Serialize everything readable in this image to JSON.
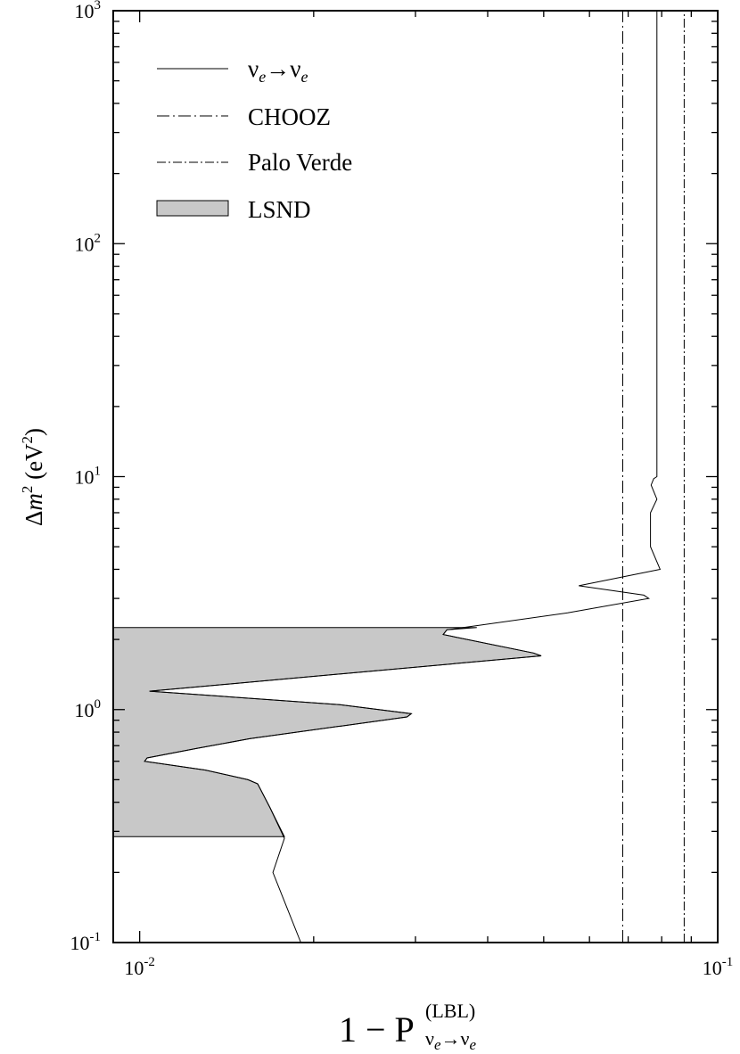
{
  "chart_data": {
    "type": "line",
    "x_scale": "log",
    "y_scale": "log",
    "xlim": [
      0.009,
      0.1
    ],
    "ylim": [
      0.1,
      1000
    ],
    "grid": false,
    "legend_position": "top-left",
    "xlabel": {
      "main": "1 − P",
      "sup": "(LBL)",
      "sub_a": "ν",
      "sub_e1": "e",
      "sub_arrow": "→ν",
      "sub_e2": "e"
    },
    "ylabel": {
      "delta": "Δ",
      "m": "m",
      "sq": "2",
      "unit_open": " (eV",
      "unit_sq": "2",
      "unit_close": ")"
    },
    "x_ticks": [
      {
        "value": 0.01,
        "base": "10",
        "exp": "-2"
      },
      {
        "value": 0.1,
        "base": "10",
        "exp": "-1"
      }
    ],
    "y_ticks": [
      {
        "value": 0.1,
        "base": "10",
        "exp": "-1"
      },
      {
        "value": 1,
        "base": "10",
        "exp": "0"
      },
      {
        "value": 10,
        "base": "10",
        "exp": "1"
      },
      {
        "value": 100,
        "base": "10",
        "exp": "2"
      },
      {
        "value": 1000,
        "base": "10",
        "exp": "3"
      }
    ],
    "legend": [
      {
        "key": "nue",
        "style": "solid",
        "label_parts": [
          "ν",
          "e",
          "→ν",
          "e"
        ]
      },
      {
        "key": "chooz",
        "style": "dashdot",
        "label": "CHOOZ"
      },
      {
        "key": "paloverde",
        "style": "dashdot-fine",
        "label": "Palo Verde"
      },
      {
        "key": "lsnd",
        "style": "filled",
        "label": "LSND"
      }
    ],
    "series": [
      {
        "key": "nue",
        "style": "solid",
        "points": [
          [
            0.019,
            0.1
          ],
          [
            0.017,
            0.2
          ],
          [
            0.0178,
            0.28
          ],
          [
            0.0168,
            0.38
          ],
          [
            0.016,
            0.48
          ],
          [
            0.0154,
            0.5
          ],
          [
            0.013,
            0.55
          ],
          [
            0.0102,
            0.6
          ],
          [
            0.0103,
            0.62
          ],
          [
            0.0125,
            0.68
          ],
          [
            0.0155,
            0.75
          ],
          [
            0.029,
            0.93
          ],
          [
            0.0295,
            0.96
          ],
          [
            0.0222,
            1.05
          ],
          [
            0.0104,
            1.2
          ],
          [
            0.0495,
            1.7
          ],
          [
            0.048,
            1.75
          ],
          [
            0.0335,
            2.1
          ],
          [
            0.034,
            2.2
          ],
          [
            0.055,
            2.6
          ],
          [
            0.076,
            3.0
          ],
          [
            0.0745,
            3.1
          ],
          [
            0.0575,
            3.4
          ],
          [
            0.0795,
            4.0
          ],
          [
            0.0765,
            5.0
          ],
          [
            0.0765,
            7.0
          ],
          [
            0.0785,
            8.0
          ],
          [
            0.0767,
            9.2
          ],
          [
            0.0775,
            9.8
          ],
          [
            0.0785,
            10.0
          ],
          [
            0.0785,
            1000
          ]
        ]
      },
      {
        "key": "chooz",
        "style": "dashdot",
        "points": [
          [
            0.0685,
            0.1
          ],
          [
            0.0685,
            1000
          ]
        ]
      },
      {
        "key": "paloverde",
        "style": "dashdot-fine",
        "points": [
          [
            0.0875,
            0.1
          ],
          [
            0.0875,
            1000
          ]
        ]
      }
    ],
    "regions": [
      {
        "key": "lsnd",
        "fill": "#c8c8c8",
        "outline_points": [
          [
            0.009,
            0.285
          ],
          [
            0.0178,
            0.285
          ],
          [
            0.0168,
            0.38
          ],
          [
            0.016,
            0.48
          ],
          [
            0.0154,
            0.5
          ],
          [
            0.013,
            0.55
          ],
          [
            0.0102,
            0.6
          ],
          [
            0.0103,
            0.62
          ],
          [
            0.0125,
            0.68
          ],
          [
            0.0155,
            0.75
          ],
          [
            0.029,
            0.93
          ],
          [
            0.0295,
            0.96
          ],
          [
            0.0222,
            1.05
          ],
          [
            0.0104,
            1.2
          ],
          [
            0.0495,
            1.7
          ],
          [
            0.048,
            1.75
          ],
          [
            0.0335,
            2.1
          ],
          [
            0.034,
            2.2
          ],
          [
            0.0383,
            2.25
          ],
          [
            0.009,
            2.25
          ]
        ]
      }
    ],
    "colors": {
      "line": "#000000",
      "lsnd_fill": "#c8c8c8",
      "background": "#ffffff"
    }
  }
}
